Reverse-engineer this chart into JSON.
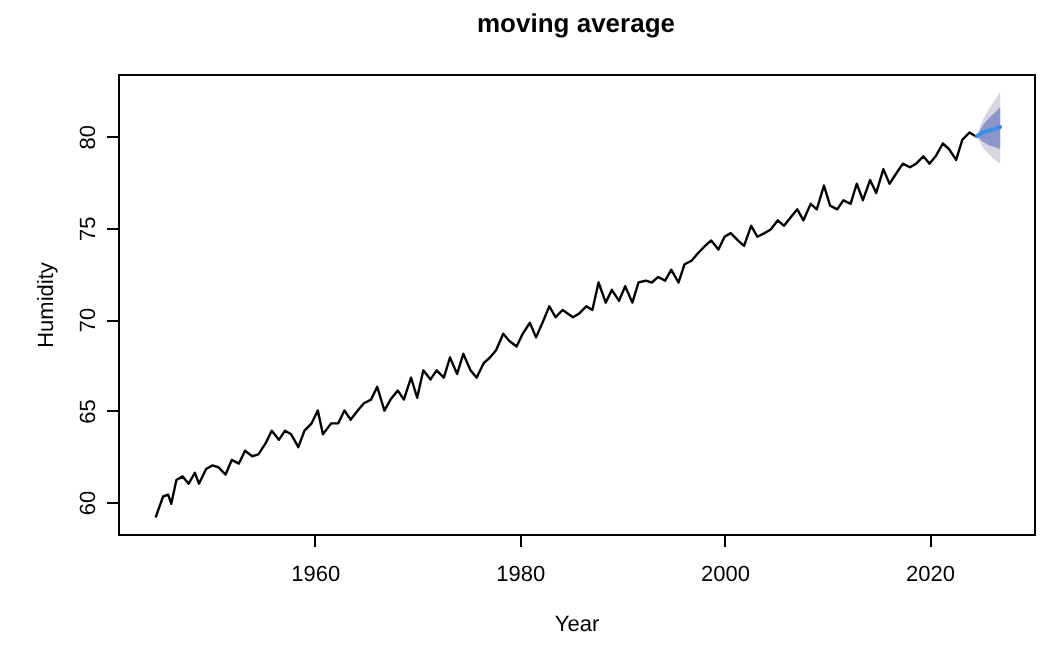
{
  "chart_data": {
    "type": "line",
    "title": "moving average",
    "xlabel": "Year",
    "ylabel": "Humidity",
    "xlim": [
      1940.8,
      2030.2
    ],
    "ylim": [
      58.25,
      83.4
    ],
    "xticks": [
      1960,
      1980,
      2000,
      2020
    ],
    "yticks": [
      60,
      65,
      70,
      75,
      80
    ],
    "grid": false,
    "legend": false,
    "series": [
      {
        "color": "#000000",
        "x": [
          1944.5,
          1945.2,
          1945.7,
          1946,
          1946.5,
          1947.1,
          1947.7,
          1948.3,
          1948.7,
          1949.4,
          1950,
          1950.6,
          1951.3,
          1951.9,
          1952.6,
          1953.2,
          1953.9,
          1954.5,
          1955.2,
          1955.8,
          1956.5,
          1957.1,
          1957.7,
          1958.4,
          1959,
          1959.7,
          1960.3,
          1960.8,
          1961.6,
          1962.3,
          1962.9,
          1963.5,
          1964.2,
          1964.8,
          1965.5,
          1966.1,
          1966.8,
          1967.4,
          1968.1,
          1968.7,
          1969.4,
          1970,
          1970.6,
          1971.3,
          1971.9,
          1972.6,
          1973.2,
          1973.9,
          1974.5,
          1975.2,
          1975.8,
          1976.5,
          1977.1,
          1977.7,
          1978.4,
          1979,
          1979.7,
          1980.3,
          1981,
          1981.6,
          1982.3,
          1982.9,
          1983.5,
          1984.2,
          1985.2,
          1985.8,
          1986.5,
          1987.1,
          1987.7,
          1988.4,
          1989,
          1989.7,
          1990.3,
          1991,
          1991.6,
          1992.3,
          1992.9,
          1993.5,
          1994.2,
          1994.8,
          1995.5,
          1996.1,
          1996.8,
          1997.4,
          1998.1,
          1998.7,
          1999.4,
          2000,
          2000.6,
          2001.3,
          2001.9,
          2002.6,
          2003.2,
          2003.9,
          2004.5,
          2005.2,
          2005.8,
          2006.5,
          2007.1,
          2007.7,
          2008.4,
          2009,
          2009.7,
          2010.3,
          2011,
          2011.6,
          2012.3,
          2012.9,
          2013.5,
          2014.2,
          2014.8,
          2015.5,
          2016.1,
          2016.8,
          2017.4,
          2018.1,
          2018.7,
          2019.4,
          2020,
          2020.6,
          2021.3,
          2021.9,
          2022.6,
          2023.2,
          2023.9,
          2024.5
        ],
        "values": [
          59.2,
          60.3,
          60.4,
          59.9,
          61.2,
          61.4,
          61,
          61.6,
          61,
          61.8,
          62,
          61.9,
          61.5,
          62.3,
          62.1,
          62.8,
          62.5,
          62.6,
          63.2,
          63.9,
          63.4,
          63.9,
          63.7,
          63,
          63.9,
          64.3,
          65,
          63.7,
          64.3,
          64.3,
          65,
          64.5,
          65,
          65.4,
          65.6,
          66.3,
          65,
          65.6,
          66.1,
          65.6,
          66.8,
          65.7,
          67.2,
          66.7,
          67.2,
          66.8,
          67.9,
          67,
          68.1,
          67.2,
          66.8,
          67.6,
          67.9,
          68.3,
          69.2,
          68.8,
          68.5,
          69.2,
          69.8,
          69,
          69.9,
          70.7,
          70.1,
          70.5,
          70.1,
          70.3,
          70.7,
          70.5,
          72,
          70.9,
          71.6,
          71,
          71.8,
          70.9,
          72,
          72.1,
          72,
          72.3,
          72.1,
          72.7,
          72,
          73,
          73.2,
          73.6,
          74,
          74.3,
          73.8,
          74.5,
          74.7,
          74.3,
          74,
          75.1,
          74.5,
          74.7,
          74.9,
          75.4,
          75.1,
          75.6,
          76,
          75.4,
          76.3,
          76,
          77.3,
          76.2,
          76,
          76.5,
          76.3,
          77.4,
          76.5,
          77.6,
          76.9,
          78.2,
          77.4,
          78,
          78.5,
          78.3,
          78.5,
          78.9,
          78.5,
          78.9,
          79.6,
          79.3,
          78.7,
          79.8,
          80.2,
          80
        ]
      },
      {
        "color": "#d6d6e2",
        "x": [
          2024.6,
          2025.2,
          2025.8,
          2026.4,
          2026.9
        ],
        "values": [
          null,
          null,
          null,
          null,
          null
        ],
        "lower": [
          80,
          79.4,
          79,
          78.7,
          78.5
        ],
        "upper": [
          80,
          80.9,
          81.5,
          82,
          82.4
        ]
      },
      {
        "color": "#3b8ee8",
        "x": [
          2024.6,
          2025.2,
          2025.8,
          2026.4,
          2026.9
        ],
        "values": [
          80,
          80.2,
          80.3,
          80.4,
          80.5
        ],
        "lower": [
          80,
          79.7,
          79.5,
          79.4,
          79.3
        ],
        "upper": [
          80,
          80.6,
          81,
          81.3,
          81.6
        ]
      }
    ]
  }
}
